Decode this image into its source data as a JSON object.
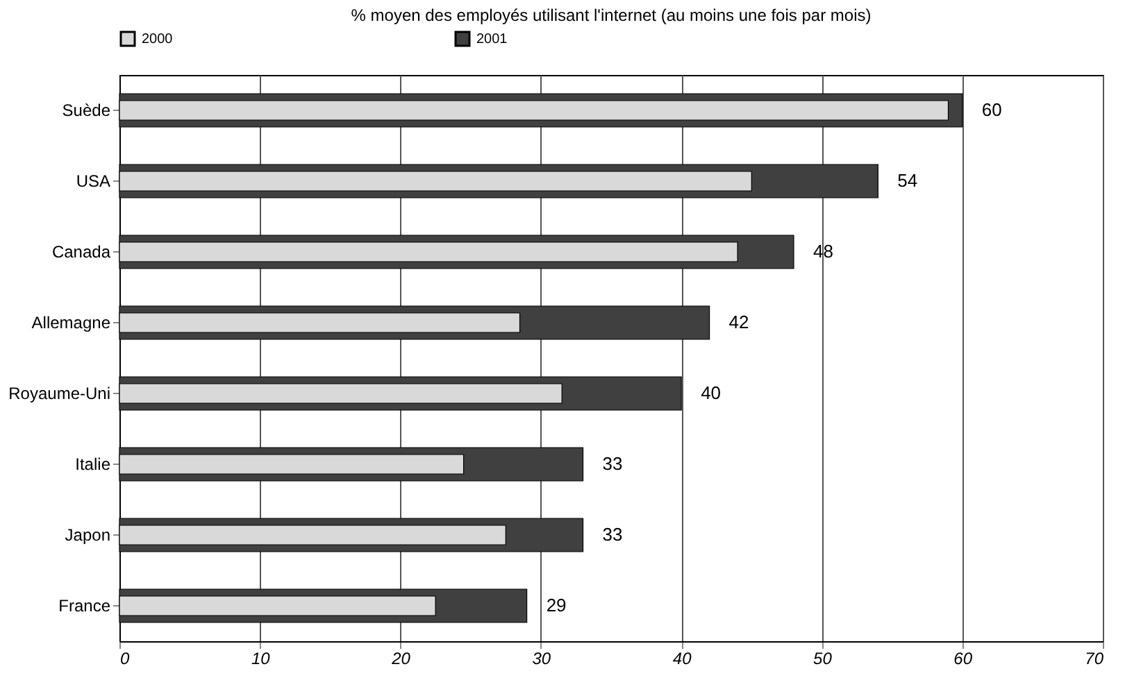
{
  "chart_data": {
    "type": "bar",
    "orientation": "horizontal",
    "title": "% moyen des employés utilisant l'internet (au moins une fois par mois)",
    "categories": [
      "Suède",
      "USA",
      "Canada",
      "Allemagne",
      "Royaume-Uni",
      "Italie",
      "Japon",
      "France"
    ],
    "series": [
      {
        "name": "2000",
        "color": "#d9d9d9",
        "values": [
          59,
          45,
          44,
          28.5,
          31.5,
          24.5,
          27.5,
          22.5
        ]
      },
      {
        "name": "2001",
        "color": "#404040",
        "values": [
          60,
          54,
          48,
          42,
          40,
          33,
          33,
          29
        ],
        "value_labels": [
          "60",
          "54",
          "48",
          "42",
          "40",
          "33",
          "33",
          "29"
        ]
      }
    ],
    "xlim": [
      0,
      70
    ],
    "xticks": [
      0,
      10,
      20,
      30,
      40,
      50,
      60,
      70
    ],
    "grid": "x",
    "legend": "top"
  }
}
